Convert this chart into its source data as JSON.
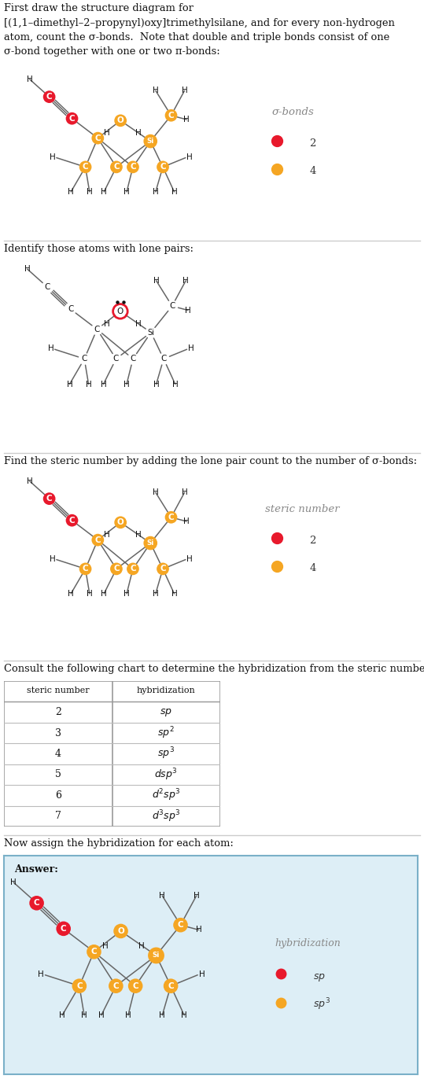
{
  "title1": "First draw the structure diagram for\n[(1,1–dimethyl–2–propynyl)oxy]trimethylsilane, and for every non-hydrogen\natom, count the σ-bonds.  Note that double and triple bonds consist of one\nσ-bond together with one or two π-bonds:",
  "title2": "Identify those atoms with lone pairs:",
  "title3": "Find the steric number by adding the lone pair count to the number of σ-bonds:",
  "title4": "Consult the following chart to determine the hybridization from the steric number:",
  "title5": "Now assign the hybridization for each atom:",
  "answer_label": "Answer:",
  "red": "#e8192c",
  "orange": "#f5a623",
  "gray_text": "#888888",
  "dark_text": "#333333",
  "line_col": "#666666",
  "bg_blue": "#ddeef6",
  "border_blue": "#7ab0c8",
  "sep_color": "#cccccc",
  "steric_numbers": [
    "2",
    "3",
    "4",
    "5",
    "6",
    "7"
  ],
  "hybridizations_display": [
    "$sp$",
    "$sp^2$",
    "$sp^3$",
    "$dsp^3$",
    "$d^2sp^3$",
    "$d^3sp^3$"
  ]
}
